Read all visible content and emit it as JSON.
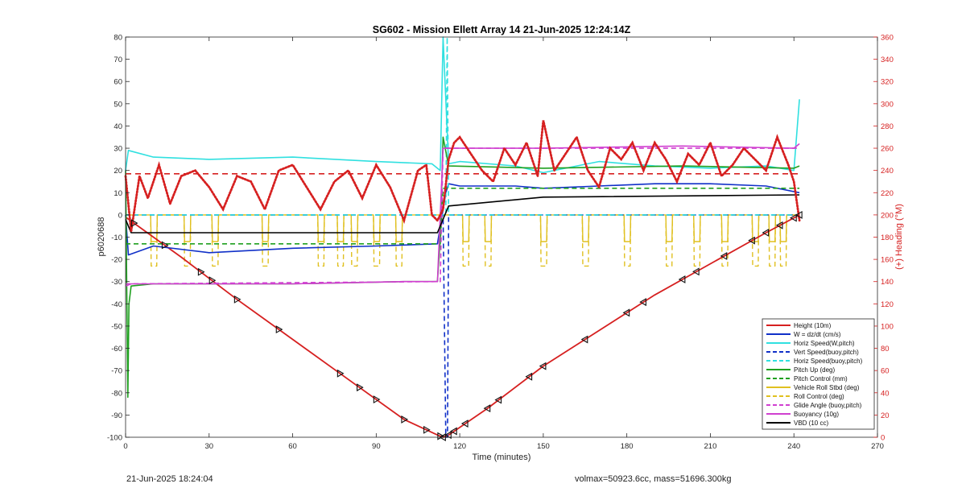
{
  "footer": {
    "timestamp": "21-Jun-2025 18:24:04",
    "mass_info": "volmax=50923.6cc, mass=51696.300kg"
  },
  "chart_data": {
    "type": "line",
    "title": "SG602 - Mission Ellett Array 14 21-Jun-2025 12:24:14Z",
    "xlabel": "Time (minutes)",
    "ylabel": "p6020688",
    "y2label": "(+) Heading (°M)",
    "xlim": [
      0,
      270
    ],
    "ylim": [
      -100,
      80
    ],
    "y2lim": [
      0,
      360
    ],
    "xticks": [
      0,
      30,
      60,
      90,
      120,
      150,
      180,
      210,
      240,
      270
    ],
    "yticks": [
      -100,
      -90,
      -80,
      -70,
      -60,
      -50,
      -40,
      -30,
      -20,
      -10,
      0,
      10,
      20,
      30,
      40,
      50,
      60,
      70,
      80
    ],
    "y2ticks": [
      0,
      20,
      40,
      60,
      80,
      100,
      120,
      140,
      160,
      180,
      200,
      220,
      240,
      260,
      280,
      300,
      320,
      340,
      360
    ],
    "legend_position": "bottom-right",
    "colors": {
      "red": "#d62020",
      "blue": "#1030c8",
      "cyan": "#30e0e0",
      "green": "#20a020",
      "yellow": "#e0c020",
      "magenta": "#d040d0",
      "black": "#000000"
    },
    "series": [
      {
        "name": "Height (10m)",
        "color": "#d62020",
        "style": "solid",
        "x": [
          0,
          20,
          40,
          60,
          80,
          100,
          112,
          114,
          116,
          130,
          150,
          170,
          190,
          210,
          230,
          242
        ],
        "y": [
          -1,
          -19,
          -38,
          -56,
          -74,
          -92,
          -99,
          -100,
          -99,
          -87,
          -68,
          -52,
          -36,
          -22,
          -8,
          0
        ]
      },
      {
        "name": "W = dz/dt (cm/s)",
        "color": "#1030c8",
        "style": "solid",
        "x": [
          0,
          1,
          10,
          30,
          60,
          90,
          112,
          115,
          116,
          120,
          140,
          150,
          170,
          190,
          210,
          230,
          242
        ],
        "y": [
          0,
          -18,
          -14,
          -17,
          -15,
          -14,
          -13,
          10,
          14,
          13,
          13,
          12,
          13,
          14,
          14,
          13,
          10
        ]
      },
      {
        "name": "Horiz Speed(W,pitch)",
        "color": "#30e0e0",
        "style": "solid",
        "x": [
          0,
          1,
          10,
          30,
          60,
          90,
          110,
          113,
          114,
          116,
          120,
          140,
          150,
          170,
          190,
          210,
          230,
          240,
          242
        ],
        "y": [
          20,
          29,
          26,
          25,
          26,
          24,
          23,
          20,
          80,
          23,
          24,
          22,
          19,
          24,
          22,
          21,
          22,
          20,
          52
        ]
      },
      {
        "name": "Vert Speed(buoy,pitch)",
        "color": "#1030c8",
        "style": "dashed",
        "x": [
          0,
          114,
          115,
          115.6,
          116,
          242
        ],
        "y": [
          0,
          0,
          -100,
          -100,
          0,
          0
        ]
      },
      {
        "name": "Horiz Speed(buoy,pitch)",
        "color": "#30e0e0",
        "style": "dashed",
        "x": [
          0,
          115,
          115.5,
          116,
          242
        ],
        "y": [
          0,
          0,
          80,
          0,
          0
        ]
      },
      {
        "name": "Pitch Up (deg)",
        "color": "#20a020",
        "style": "solid",
        "x": [
          0,
          0.8,
          1.2,
          2,
          10,
          60,
          100,
          112,
          113,
          114,
          116,
          150,
          200,
          240,
          242
        ],
        "y": [
          20,
          -82,
          -40,
          -32,
          -31,
          -31,
          -30,
          -30,
          -10,
          35,
          22,
          21,
          22,
          21,
          22
        ]
      },
      {
        "name": "Pitch Control (mm)",
        "color": "#20a020",
        "style": "dashed",
        "x": [
          0,
          113,
          114,
          242
        ],
        "y": [
          -13,
          -13,
          12,
          12
        ]
      },
      {
        "name": "Vehicle Roll Stbd (deg)",
        "color": "#e0c020",
        "style": "solid",
        "x": [
          0,
          115,
          116,
          242
        ],
        "y": [
          0,
          0,
          0,
          0
        ]
      },
      {
        "name": "Roll Control (deg)",
        "color": "#e0c020",
        "style": "dashed",
        "x": [
          0,
          242
        ],
        "y": [
          0,
          0
        ]
      },
      {
        "name": "Glide Angle (buoy,pitch)",
        "color": "#d040d0",
        "style": "dashed",
        "x": [
          0,
          113,
          114,
          242
        ],
        "y": [
          -31,
          -30,
          30,
          30
        ]
      },
      {
        "name": "Buoyancy (10g)",
        "color": "#d040d0",
        "style": "solid",
        "x": [
          0,
          2,
          60,
          100,
          112,
          114,
          116,
          150,
          200,
          240,
          242
        ],
        "y": [
          -32,
          -31,
          -31,
          -30,
          -30,
          30,
          30,
          30,
          31,
          30,
          32
        ]
      },
      {
        "name": "VBD (10 cc)",
        "color": "#000000",
        "style": "solid",
        "x": [
          0,
          2,
          110,
          112,
          116,
          150,
          242
        ],
        "y": [
          -2,
          -8,
          -8,
          -8,
          4,
          8,
          9
        ]
      }
    ],
    "pulse_series": {
      "roll_solid_pulses_x": [
        10,
        22,
        32,
        50,
        70,
        77,
        82,
        90,
        98,
        122,
        130,
        150,
        165,
        180,
        195,
        205,
        215,
        226,
        232,
        236
      ],
      "roll_solid_low": -12,
      "roll_dashed_low": -23
    },
    "heading": {
      "name": "Heading",
      "axis": "y2",
      "color": "#d62020",
      "x": [
        0,
        2,
        5,
        8,
        12,
        16,
        20,
        25,
        30,
        35,
        40,
        45,
        50,
        55,
        60,
        65,
        70,
        75,
        80,
        85,
        90,
        95,
        100,
        105,
        108,
        110,
        112,
        114,
        116,
        118,
        120,
        124,
        128,
        132,
        136,
        140,
        144,
        148,
        150,
        154,
        158,
        162,
        166,
        170,
        174,
        178,
        182,
        186,
        190,
        194,
        198,
        202,
        206,
        210,
        214,
        218,
        222,
        226,
        230,
        234,
        238,
        240,
        242
      ],
      "y": [
        235,
        185,
        235,
        215,
        245,
        210,
        235,
        240,
        225,
        205,
        235,
        230,
        205,
        240,
        245,
        225,
        205,
        230,
        240,
        215,
        245,
        225,
        195,
        240,
        245,
        200,
        195,
        205,
        250,
        265,
        270,
        255,
        240,
        230,
        260,
        245,
        265,
        235,
        285,
        240,
        255,
        270,
        240,
        225,
        260,
        250,
        265,
        240,
        265,
        250,
        230,
        255,
        245,
        265,
        235,
        245,
        260,
        250,
        240,
        270,
        245,
        230,
        195
      ],
      "reference_heading": 237
    },
    "markers": {
      "name": "Height markers",
      "x": [
        3,
        14,
        27,
        31,
        40,
        55,
        77,
        84,
        90,
        100,
        108,
        113,
        114,
        116,
        118,
        122,
        130,
        134,
        145,
        150,
        165,
        180,
        186,
        200,
        205,
        215,
        225,
        230,
        235,
        240,
        242
      ]
    }
  }
}
